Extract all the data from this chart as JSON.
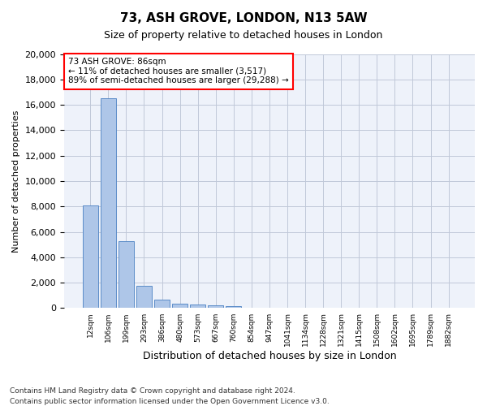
{
  "title1": "73, ASH GROVE, LONDON, N13 5AW",
  "title2": "Size of property relative to detached houses in London",
  "xlabel": "Distribution of detached houses by size in London",
  "ylabel": "Number of detached properties",
  "categories": [
    "12sqm",
    "106sqm",
    "199sqm",
    "293sqm",
    "386sqm",
    "480sqm",
    "573sqm",
    "667sqm",
    "760sqm",
    "854sqm",
    "947sqm",
    "1041sqm",
    "1134sqm",
    "1228sqm",
    "1321sqm",
    "1415sqm",
    "1508sqm",
    "1602sqm",
    "1695sqm",
    "1789sqm",
    "1882sqm"
  ],
  "values": [
    8100,
    16500,
    5300,
    1750,
    650,
    350,
    280,
    200,
    150,
    50,
    30,
    20,
    15,
    10,
    8,
    6,
    5,
    4,
    3,
    2,
    1
  ],
  "bar_color": "#aec6e8",
  "bar_edge_color": "#5b8cc8",
  "annotation_line1": "73 ASH GROVE: 86sqm",
  "annotation_line2": "← 11% of detached houses are smaller (3,517)",
  "annotation_line3": "89% of semi-detached houses are larger (29,288) →",
  "annotation_box_color": "#ffffff",
  "annotation_box_edge": "#ff0000",
  "ylim": [
    0,
    20000
  ],
  "yticks": [
    0,
    2000,
    4000,
    6000,
    8000,
    10000,
    12000,
    14000,
    16000,
    18000,
    20000
  ],
  "footnote1": "Contains HM Land Registry data © Crown copyright and database right 2024.",
  "footnote2": "Contains public sector information licensed under the Open Government Licence v3.0.",
  "bg_color": "#eef2fa",
  "plot_bg_color": "#ffffff"
}
